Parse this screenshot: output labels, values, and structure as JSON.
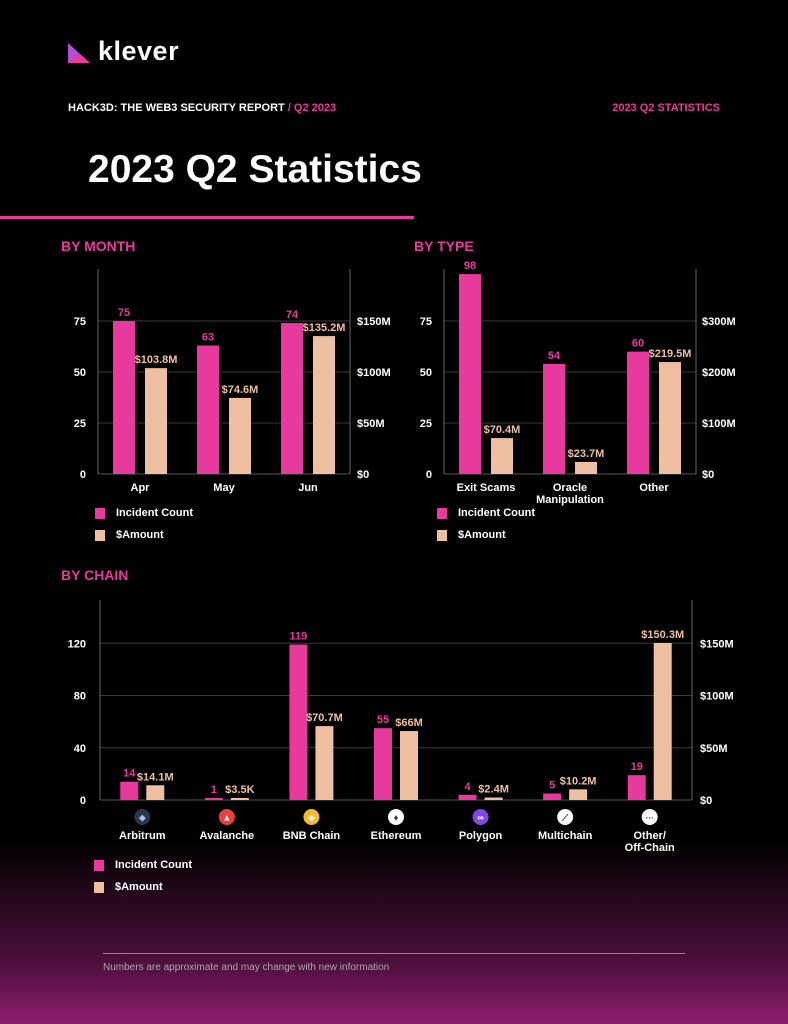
{
  "header": {
    "logo_text": "klever",
    "report_title": "HACK3D: THE WEB3 SECURITY REPORT",
    "report_sub": " / Q2 2023",
    "right_label": "2023 Q2 STATISTICS",
    "page_title": "2023 Q2 Statistics"
  },
  "colors": {
    "count": "#e8399f",
    "amount": "#eebfa0",
    "accent": "#e8399f"
  },
  "legend": {
    "count": "Incident Count",
    "amount": "$Amount"
  },
  "footnote": "Numbers are approximate and may change with new information",
  "chart_data": [
    {
      "type": "bar",
      "title": "BY MONTH",
      "categories": [
        "Apr",
        "May",
        "Jun"
      ],
      "series": [
        {
          "name": "Incident Count",
          "values": [
            75,
            63,
            74
          ],
          "labels": [
            "75",
            "63",
            "74"
          ],
          "axis": "left"
        },
        {
          "name": "$Amount",
          "values": [
            103.8,
            74.6,
            135.2
          ],
          "labels": [
            "$103.8M",
            "$74.6M",
            "$135.2M"
          ],
          "axis": "right"
        }
      ],
      "left_axis": {
        "ticks": [
          0,
          25,
          50,
          75
        ],
        "tick_labels": [
          "0",
          "25",
          "50",
          "75"
        ],
        "max": 100
      },
      "right_axis": {
        "ticks": [
          0,
          50,
          100,
          150
        ],
        "tick_labels": [
          "$0",
          "$50M",
          "$100M",
          "$150M"
        ],
        "max": 200
      },
      "grid": true
    },
    {
      "type": "bar",
      "title": "BY TYPE",
      "categories": [
        "Exit Scams",
        "Oracle\nManipulation",
        "Other"
      ],
      "series": [
        {
          "name": "Incident Count",
          "values": [
            98,
            54,
            60
          ],
          "labels": [
            "98",
            "54",
            "60"
          ],
          "axis": "left"
        },
        {
          "name": "$Amount",
          "values": [
            70.4,
            23.7,
            219.5
          ],
          "labels": [
            "$70.4M",
            "$23.7M",
            "$219.5M"
          ],
          "axis": "right"
        }
      ],
      "left_axis": {
        "ticks": [
          0,
          25,
          50,
          75
        ],
        "tick_labels": [
          "0",
          "25",
          "50",
          "75"
        ],
        "max": 100
      },
      "right_axis": {
        "ticks": [
          0,
          100,
          200,
          300
        ],
        "tick_labels": [
          "$0",
          "$100M",
          "$200M",
          "$300M"
        ],
        "max": 400
      },
      "grid": true
    },
    {
      "type": "bar",
      "title": "BY CHAIN",
      "categories": [
        "Arbitrum",
        "Avalanche",
        "BNB Chain",
        "Ethereum",
        "Polygon",
        "Multichain",
        "Other/\nOff-Chain"
      ],
      "icons": [
        "arbitrum-icon",
        "avalanche-icon",
        "bnb-chain-icon",
        "ethereum-icon",
        "polygon-icon",
        "multichain-icon",
        "other-chain-icon"
      ],
      "series": [
        {
          "name": "Incident Count",
          "values": [
            14,
            1,
            119,
            55,
            4,
            5,
            19
          ],
          "labels": [
            "14",
            "1",
            "119",
            "55",
            "4",
            "5",
            "19"
          ],
          "axis": "left"
        },
        {
          "name": "$Amount",
          "values": [
            14.1,
            0.0035,
            70.7,
            66,
            2.4,
            10.2,
            150.3
          ],
          "labels": [
            "$14.1M",
            "$3.5K",
            "$70.7M",
            "$66M",
            "$2.4M",
            "$10.2M",
            "$150.3M"
          ],
          "axis": "right"
        }
      ],
      "left_axis": {
        "ticks": [
          0,
          40,
          80,
          120
        ],
        "tick_labels": [
          "0",
          "40",
          "80",
          "120"
        ],
        "max": 160
      },
      "right_axis": {
        "ticks": [
          0,
          50,
          100,
          150
        ],
        "tick_labels": [
          "$0",
          "$50M",
          "$100M",
          "$150M"
        ],
        "max": 200
      },
      "grid": true
    }
  ]
}
